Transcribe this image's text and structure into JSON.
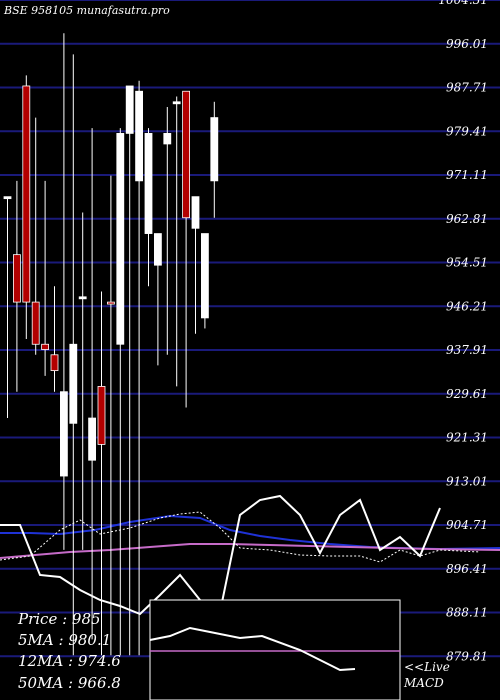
{
  "chart_data": {
    "type": "candlestick",
    "title": "BSE 958105 munafasutra.pro",
    "ylim": [
      871.51,
      1004.31
    ],
    "yticks": [
      1004.31,
      996.01,
      987.71,
      979.41,
      971.11,
      962.81,
      954.51,
      946.21,
      937.91,
      929.61,
      921.31,
      913.01,
      904.71,
      896.41,
      888.11,
      879.81
    ],
    "ytick_labels": [
      "1004.31",
      "996.01",
      "987.71",
      "979.41",
      "971.11",
      "962.81",
      "954.51",
      "946.21",
      "937.91",
      "929.61",
      "921.31",
      "913.01",
      "904.71",
      "896.41",
      "888.11",
      "879.81"
    ],
    "candles": [
      {
        "open": 967.0,
        "high": 967.0,
        "low": 925.0,
        "close": 967.0,
        "color": "white"
      },
      {
        "open": 956.0,
        "high": 970.0,
        "low": 930.0,
        "close": 947.0,
        "color": "red"
      },
      {
        "open": 988.0,
        "high": 990.0,
        "low": 940.0,
        "close": 947.0,
        "color": "red"
      },
      {
        "open": 947.0,
        "high": 982.0,
        "low": 937.0,
        "close": 939.0,
        "color": "red"
      },
      {
        "open": 939.0,
        "high": 970.0,
        "low": 933.0,
        "close": 938.0,
        "color": "red"
      },
      {
        "open": 937.0,
        "high": 950.0,
        "low": 930.0,
        "close": 934.0,
        "color": "red"
      },
      {
        "open": 914.0,
        "high": 998.0,
        "low": 900.0,
        "close": 930.0,
        "color": "white"
      },
      {
        "open": 924.0,
        "high": 994.0,
        "low": 880.0,
        "close": 939.0,
        "color": "white"
      },
      {
        "open": 948.0,
        "high": 964.0,
        "low": 900.0,
        "close": 948.0,
        "color": "white"
      },
      {
        "open": 925.0,
        "high": 980.0,
        "low": 883.0,
        "close": 917.0,
        "color": "white"
      },
      {
        "open": 931.0,
        "high": 949.0,
        "low": 880.0,
        "close": 920.0,
        "color": "red"
      },
      {
        "open": 947.0,
        "high": 971.0,
        "low": 880.0,
        "close": 947.0,
        "color": "red"
      },
      {
        "open": 939.0,
        "high": 980.0,
        "low": 880.0,
        "close": 979.0,
        "color": "white"
      },
      {
        "open": 979.0,
        "high": 987.0,
        "low": 880.0,
        "close": 988.0,
        "color": "white"
      },
      {
        "open": 987.0,
        "high": 989.0,
        "low": 880.0,
        "close": 970.0,
        "color": "white"
      },
      {
        "open": 979.0,
        "high": 980.0,
        "low": 950.0,
        "close": 960.0,
        "color": "white"
      },
      {
        "open": 954.0,
        "high": 960.0,
        "low": 935.0,
        "close": 960.0,
        "color": "white"
      },
      {
        "open": 977.0,
        "high": 984.0,
        "low": 937.0,
        "close": 979.0,
        "color": "white"
      },
      {
        "open": 985.0,
        "high": 986.0,
        "low": 931.0,
        "close": 985.0,
        "color": "white"
      },
      {
        "open": 987.0,
        "high": 987.0,
        "low": 927.0,
        "close": 963.0,
        "color": "red"
      },
      {
        "open": 967.0,
        "high": 967.0,
        "low": 941.0,
        "close": 961.0,
        "color": "white"
      },
      {
        "open": 960.0,
        "high": 960.0,
        "low": 942.0,
        "close": 944.0,
        "color": "white"
      },
      {
        "open": 970.0,
        "high": 985.0,
        "low": 963.0,
        "close": 982.0,
        "color": "white"
      }
    ],
    "overlays": [
      {
        "name": "MACD",
        "style": "line"
      },
      {
        "name": "signal",
        "style": "dotted"
      },
      {
        "name": "moving-average-blue",
        "style": "line"
      },
      {
        "name": "moving-average-magenta",
        "style": "line"
      }
    ],
    "inset_panel": {
      "label": "",
      "style": "line"
    },
    "grid": true,
    "info": {
      "price": "Price : 985",
      "ma5": "5MA : 980.1",
      "ma12": "12MA : 974.6",
      "ma50": "50MA : 966.8"
    },
    "macd_label": "<<Live\nMACD"
  }
}
